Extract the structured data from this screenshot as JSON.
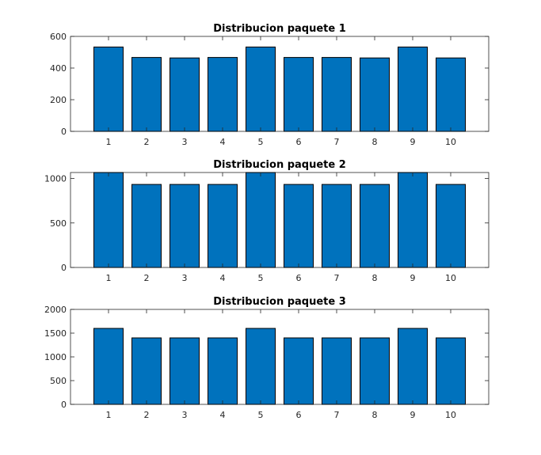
{
  "chart_data": [
    {
      "type": "bar",
      "title": "Distribucion paquete 1",
      "xlabel": "",
      "ylabel": "",
      "categories": [
        "1",
        "2",
        "3",
        "4",
        "5",
        "6",
        "7",
        "8",
        "9",
        "10"
      ],
      "values": [
        533,
        467,
        464,
        467,
        533,
        467,
        467,
        464,
        533,
        464
      ],
      "ylim": [
        0,
        600
      ],
      "yticks": [
        0,
        200,
        400,
        600
      ],
      "grid": false,
      "bar_color": "#0072BD"
    },
    {
      "type": "bar",
      "title": "Distribucion paquete 2",
      "xlabel": "",
      "ylabel": "",
      "categories": [
        "1",
        "2",
        "3",
        "4",
        "5",
        "6",
        "7",
        "8",
        "9",
        "10"
      ],
      "values": [
        1067,
        933,
        933,
        933,
        1067,
        933,
        933,
        933,
        1067,
        933
      ],
      "ylim": [
        0,
        1067
      ],
      "yticks": [
        0,
        500,
        1000
      ],
      "grid": false,
      "bar_color": "#0072BD"
    },
    {
      "type": "bar",
      "title": "Distribucion paquete 3",
      "xlabel": "",
      "ylabel": "",
      "categories": [
        "1",
        "2",
        "3",
        "4",
        "5",
        "6",
        "7",
        "8",
        "9",
        "10"
      ],
      "values": [
        1600,
        1400,
        1400,
        1400,
        1600,
        1400,
        1400,
        1400,
        1600,
        1400
      ],
      "ylim": [
        0,
        2000
      ],
      "yticks": [
        0,
        500,
        1000,
        1500,
        2000
      ],
      "grid": false,
      "bar_color": "#0072BD"
    }
  ]
}
